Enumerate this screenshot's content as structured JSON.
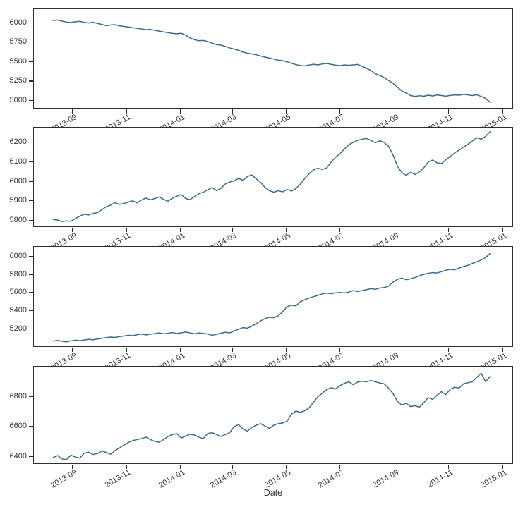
{
  "figure": {
    "background": "#ffffff",
    "line_color": "#3d6b8c",
    "spine_color": "#2e2e2e",
    "text_color": "#333333",
    "grid": false,
    "legend": "none"
  },
  "x_axis": {
    "label": "Date",
    "tick_labels": [
      "2013-09",
      "2013-11",
      "2014-01",
      "2014-03",
      "2014-05",
      "2014-07",
      "2014-09",
      "2014-11",
      "2015-01"
    ],
    "tick_days": [
      22,
      83,
      144,
      203,
      264,
      325,
      387,
      448,
      509
    ],
    "range_days": [
      -22,
      522
    ],
    "start_date": "2013-08-10",
    "step_days": 5,
    "tick_rotation_deg": 30
  },
  "chart_data": [
    {
      "type": "line",
      "name": "subplot-1",
      "y_ticks": [
        5000,
        5250,
        5500,
        5750,
        6000
      ],
      "ylim": [
        4887,
        6174
      ],
      "values": [
        6028,
        6035,
        6020,
        6008,
        6002,
        6012,
        6018,
        6004,
        5996,
        6006,
        5990,
        5978,
        5962,
        5970,
        5975,
        5960,
        5952,
        5945,
        5935,
        5928,
        5920,
        5910,
        5915,
        5902,
        5892,
        5882,
        5872,
        5862,
        5858,
        5864,
        5840,
        5805,
        5782,
        5768,
        5772,
        5758,
        5738,
        5718,
        5712,
        5695,
        5675,
        5662,
        5645,
        5622,
        5608,
        5598,
        5588,
        5572,
        5558,
        5545,
        5532,
        5518,
        5512,
        5498,
        5478,
        5462,
        5450,
        5444,
        5456,
        5466,
        5458,
        5470,
        5476,
        5465,
        5455,
        5448,
        5458,
        5452,
        5458,
        5464,
        5440,
        5414,
        5386,
        5344,
        5322,
        5295,
        5258,
        5222,
        5172,
        5125,
        5095,
        5065,
        5052,
        5062,
        5055,
        5068,
        5058,
        5072,
        5064,
        5056,
        5066,
        5072,
        5068,
        5078,
        5072,
        5064,
        5075,
        5052,
        5028,
        4978
      ]
    },
    {
      "type": "line",
      "name": "subplot-2",
      "y_ticks": [
        5800,
        5900,
        6000,
        6100,
        6200
      ],
      "ylim": [
        5763,
        6273
      ],
      "values": [
        5805,
        5802,
        5795,
        5798,
        5796,
        5810,
        5822,
        5832,
        5828,
        5836,
        5840,
        5855,
        5870,
        5878,
        5890,
        5882,
        5886,
        5894,
        5900,
        5890,
        5904,
        5914,
        5905,
        5912,
        5920,
        5908,
        5898,
        5914,
        5924,
        5932,
        5912,
        5906,
        5922,
        5936,
        5944,
        5956,
        5968,
        5952,
        5964,
        5986,
        5996,
        6002,
        6014,
        6005,
        6024,
        6032,
        6012,
        5994,
        5968,
        5952,
        5944,
        5952,
        5946,
        5958,
        5950,
        5962,
        5986,
        6014,
        6038,
        6058,
        6066,
        6060,
        6068,
        6098,
        6122,
        6140,
        6164,
        6186,
        6198,
        6208,
        6214,
        6218,
        6208,
        6196,
        6206,
        6198,
        6178,
        6135,
        6078,
        6044,
        6030,
        6046,
        6034,
        6048,
        6068,
        6098,
        6108,
        6094,
        6090,
        6110,
        6126,
        6144,
        6158,
        6174,
        6188,
        6205,
        6222,
        6214,
        6228,
        6252
      ]
    },
    {
      "type": "line",
      "name": "subplot-3",
      "y_ticks": [
        5200,
        5400,
        5600,
        5800,
        6000
      ],
      "ylim": [
        4996,
        6103
      ],
      "values": [
        5068,
        5075,
        5066,
        5060,
        5070,
        5078,
        5072,
        5080,
        5088,
        5082,
        5092,
        5098,
        5106,
        5112,
        5108,
        5118,
        5124,
        5132,
        5128,
        5138,
        5145,
        5136,
        5144,
        5150,
        5158,
        5148,
        5154,
        5162,
        5152,
        5158,
        5168,
        5158,
        5148,
        5158,
        5152,
        5145,
        5132,
        5142,
        5155,
        5165,
        5158,
        5178,
        5198,
        5216,
        5210,
        5232,
        5260,
        5288,
        5315,
        5330,
        5325,
        5345,
        5390,
        5446,
        5462,
        5455,
        5500,
        5522,
        5540,
        5556,
        5570,
        5586,
        5595,
        5588,
        5598,
        5602,
        5596,
        5606,
        5622,
        5612,
        5622,
        5632,
        5644,
        5636,
        5650,
        5656,
        5670,
        5715,
        5745,
        5760,
        5742,
        5752,
        5766,
        5786,
        5800,
        5812,
        5820,
        5816,
        5830,
        5846,
        5856,
        5850,
        5870,
        5886,
        5900,
        5920,
        5938,
        5958,
        5985,
        6028
      ]
    },
    {
      "type": "line",
      "name": "subplot-4",
      "y_ticks": [
        6400,
        6600,
        6800
      ],
      "ylim": [
        6344,
        6999
      ],
      "values": [
        6392,
        6405,
        6382,
        6378,
        6408,
        6395,
        6388,
        6420,
        6428,
        6412,
        6418,
        6435,
        6426,
        6414,
        6438,
        6456,
        6475,
        6492,
        6505,
        6512,
        6518,
        6528,
        6512,
        6500,
        6494,
        6512,
        6532,
        6545,
        6552,
        6522,
        6535,
        6548,
        6542,
        6528,
        6518,
        6552,
        6558,
        6546,
        6532,
        6545,
        6558,
        6598,
        6612,
        6582,
        6568,
        6592,
        6608,
        6618,
        6602,
        6586,
        6608,
        6618,
        6622,
        6635,
        6682,
        6702,
        6694,
        6704,
        6724,
        6762,
        6798,
        6822,
        6846,
        6858,
        6850,
        6872,
        6888,
        6898,
        6878,
        6896,
        6902,
        6898,
        6906,
        6898,
        6890,
        6884,
        6856,
        6820,
        6768,
        6742,
        6754,
        6732,
        6738,
        6728,
        6758,
        6792,
        6780,
        6808,
        6832,
        6812,
        6848,
        6862,
        6856,
        6885,
        6892,
        6898,
        6928,
        6955,
        6898,
        6932
      ]
    }
  ]
}
